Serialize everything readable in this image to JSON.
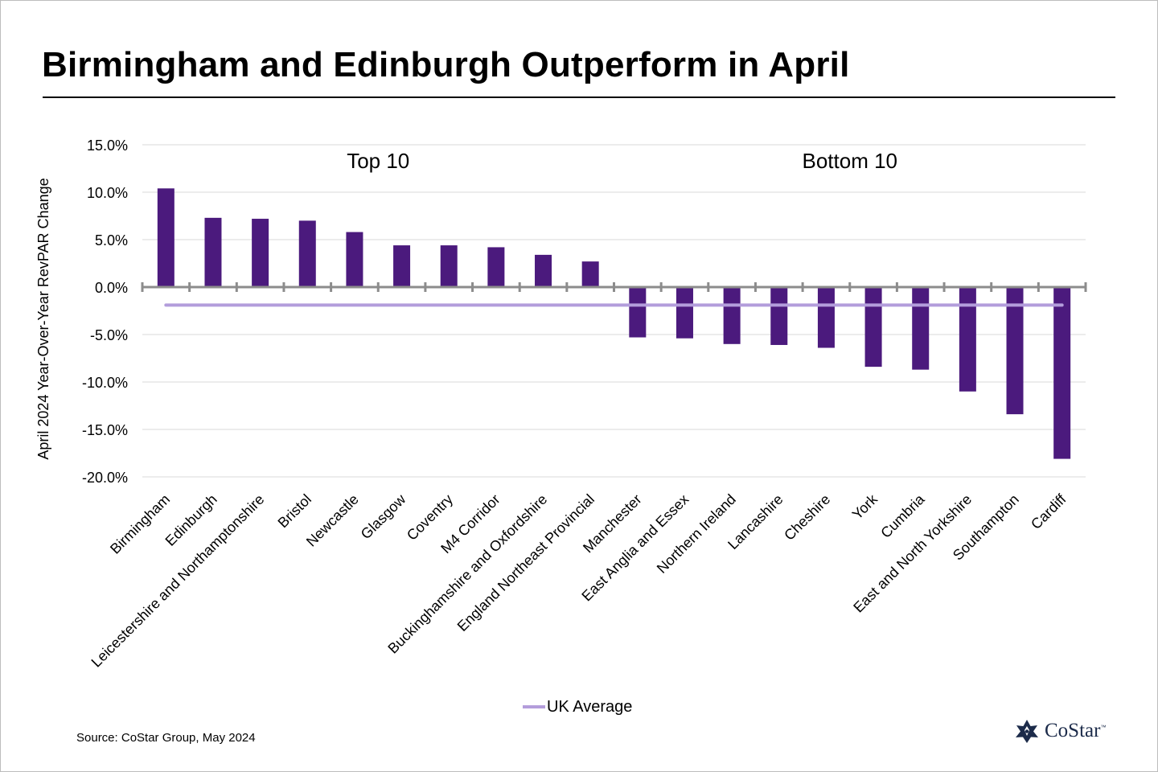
{
  "title": "Birmingham and Edinburgh Outperform in April",
  "source": "Source: CoStar Group, May 2024",
  "logo": {
    "name": "CoStar",
    "tm": "™",
    "icon": "costar-star-logo",
    "color": "#1c2b4a"
  },
  "legend": {
    "label": "UK Average",
    "color": "#b39ddb"
  },
  "chart_data": {
    "type": "bar",
    "title": "Birmingham and Edinburgh Outperform in April",
    "ylabel": "April 2024 Year-Over-Year RevPAR Change",
    "xlabel": "",
    "ylim": [
      -20,
      15
    ],
    "yticks": [
      15,
      10,
      5,
      0,
      -5,
      -10,
      -15,
      -20
    ],
    "ytick_labels": [
      "15.0%",
      "10.0%",
      "5.0%",
      "0.0%",
      "-5.0%",
      "-10.0%",
      "-15.0%",
      "-20.0%"
    ],
    "grid": true,
    "legend_position": "bottom",
    "group_labels": [
      "Top 10",
      "Bottom 10"
    ],
    "categories": [
      "Birmingham",
      "Edinburgh",
      "Leicestershire and Northamptonshire",
      "Bristol",
      "Newcastle",
      "Glasgow",
      "Coventry",
      "M4 Corridor",
      "Buckinghamshire and Oxfordshire",
      "England Northeast Provincial",
      "Manchester",
      "East Anglia and Essex",
      "Northern Ireland",
      "Lancashire",
      "Cheshire",
      "York",
      "Cumbria",
      "East and North Yorkshire",
      "Southampton",
      "Cardiff"
    ],
    "values": [
      10.4,
      7.3,
      7.2,
      7.0,
      5.8,
      4.4,
      4.4,
      4.2,
      3.4,
      2.7,
      -5.3,
      -5.4,
      -6.0,
      -6.1,
      -6.4,
      -8.4,
      -8.7,
      -11.0,
      -13.4,
      -18.1
    ],
    "bar_color": "#4b1a7d",
    "series": [
      {
        "name": "",
        "type": "bar",
        "color": "#4b1a7d"
      },
      {
        "name": "UK Average",
        "type": "line",
        "value": -1.9,
        "color": "#b39ddb"
      }
    ]
  }
}
